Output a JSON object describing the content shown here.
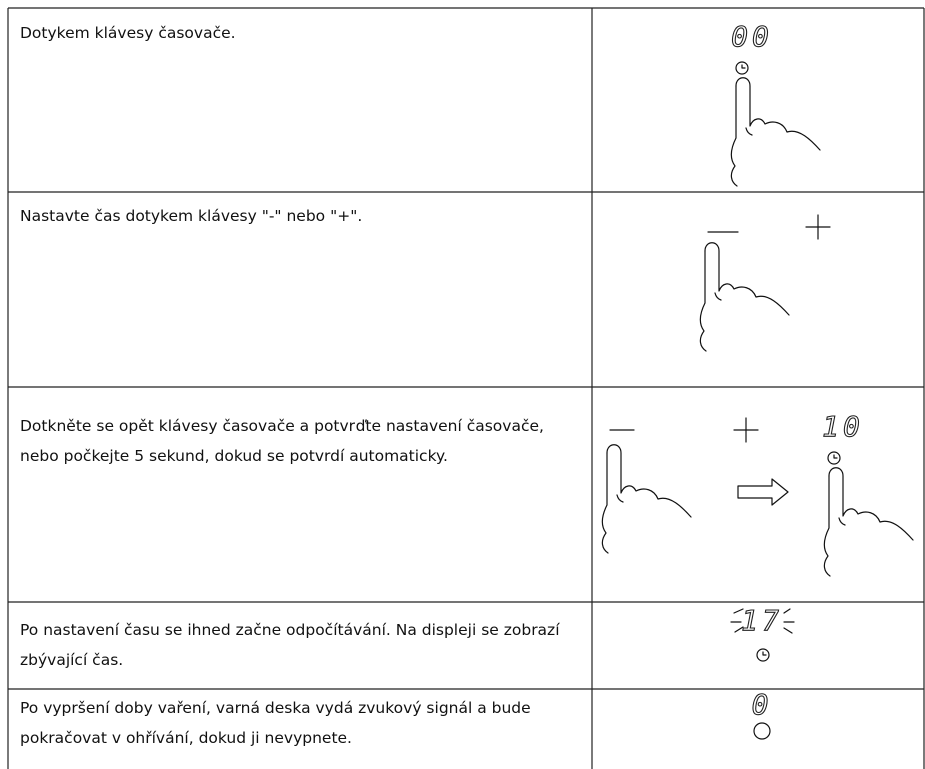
{
  "table": {
    "rows": [
      {
        "text": "Dotykem klávesy časovače.",
        "display": "00"
      },
      {
        "text": "Nastavte čas dotykem klávesy \"-\" nebo \"+\"."
      },
      {
        "text": "Dotkněte se opět klávesy časovače a potvrďte nastavení časovače, nebo počkejte 5 sekund, dokud se potvrdí automaticky.",
        "display": "10"
      },
      {
        "text": "Po nastavení času se ihned začne odpočítávání. Na displeji se zobrazí zbývající čas.",
        "display": "17"
      },
      {
        "text": "Po vypršení doby vaření, varná deska vydá zvukový signál a bude pokračovat v ohřívání, dokud ji nevypnete.",
        "display": "0"
      }
    ]
  }
}
